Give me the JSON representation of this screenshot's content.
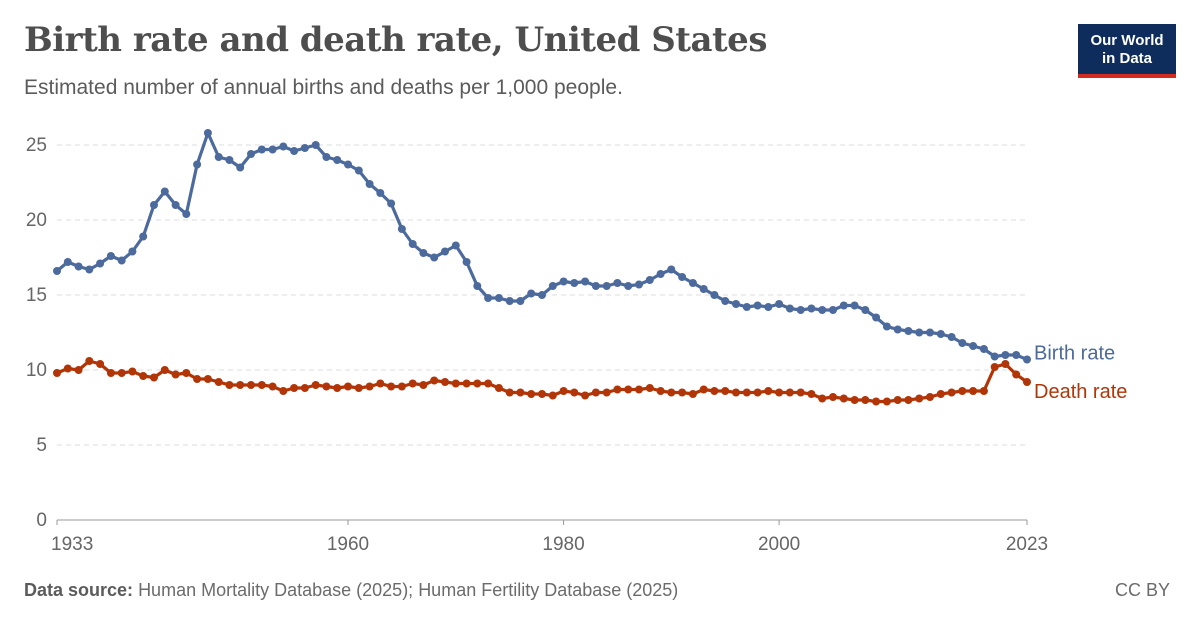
{
  "header": {
    "title": "Birth rate and death rate, United States",
    "subtitle": "Estimated number of annual births and deaths per 1,000 people."
  },
  "logo": {
    "line1": "Our World",
    "line2": "in Data"
  },
  "footer": {
    "source_label": "Data source:",
    "source_text": "Human Mortality Database (2025); Human Fertility Database (2025)",
    "license": "CC BY"
  },
  "colors": {
    "birth": "#4c6a9c",
    "death": "#b13507",
    "grid": "#dddddd",
    "axis": "#999999"
  },
  "chart_data": {
    "type": "line",
    "title": "Birth rate and death rate, United States",
    "xlim": [
      1933,
      2023
    ],
    "ylim": [
      0,
      26
    ],
    "y_ticks": [
      0,
      5,
      10,
      15,
      20,
      25
    ],
    "x_ticks": [
      1933,
      1960,
      1980,
      2000,
      2023
    ],
    "grid": "horizontal dashed",
    "legend": "inline labels at line ends",
    "x": [
      1933,
      1934,
      1935,
      1936,
      1937,
      1938,
      1939,
      1940,
      1941,
      1942,
      1943,
      1944,
      1945,
      1946,
      1947,
      1948,
      1949,
      1950,
      1951,
      1952,
      1953,
      1954,
      1955,
      1956,
      1957,
      1958,
      1959,
      1960,
      1961,
      1962,
      1963,
      1964,
      1965,
      1966,
      1967,
      1968,
      1969,
      1970,
      1971,
      1972,
      1973,
      1974,
      1975,
      1976,
      1977,
      1978,
      1979,
      1980,
      1981,
      1982,
      1983,
      1984,
      1985,
      1986,
      1987,
      1988,
      1989,
      1990,
      1991,
      1992,
      1993,
      1994,
      1995,
      1996,
      1997,
      1998,
      1999,
      2000,
      2001,
      2002,
      2003,
      2004,
      2005,
      2006,
      2007,
      2008,
      2009,
      2010,
      2011,
      2012,
      2013,
      2014,
      2015,
      2016,
      2017,
      2018,
      2019,
      2020,
      2021,
      2022,
      2023
    ],
    "series": [
      {
        "name": "Birth rate",
        "values": [
          16.6,
          17.2,
          16.9,
          16.7,
          17.1,
          17.6,
          17.3,
          17.9,
          18.9,
          21.0,
          21.9,
          21.0,
          20.4,
          23.7,
          25.8,
          24.2,
          24.0,
          23.5,
          24.4,
          24.7,
          24.7,
          24.9,
          24.6,
          24.8,
          25.0,
          24.2,
          24.0,
          23.7,
          23.3,
          22.4,
          21.8,
          21.1,
          19.4,
          18.4,
          17.8,
          17.5,
          17.9,
          18.3,
          17.2,
          15.6,
          14.8,
          14.8,
          14.6,
          14.6,
          15.1,
          15.0,
          15.6,
          15.9,
          15.8,
          15.9,
          15.6,
          15.6,
          15.8,
          15.6,
          15.7,
          16.0,
          16.4,
          16.7,
          16.2,
          15.8,
          15.4,
          15.0,
          14.6,
          14.4,
          14.2,
          14.3,
          14.2,
          14.4,
          14.1,
          14.0,
          14.1,
          14.0,
          14.0,
          14.3,
          14.3,
          14.0,
          13.5,
          12.9,
          12.7,
          12.6,
          12.5,
          12.5,
          12.4,
          12.2,
          11.8,
          11.6,
          11.4,
          10.9,
          11.0,
          11.0,
          10.7
        ]
      },
      {
        "name": "Death rate",
        "values": [
          9.8,
          10.1,
          10.0,
          10.6,
          10.4,
          9.8,
          9.8,
          9.9,
          9.6,
          9.5,
          10.0,
          9.7,
          9.8,
          9.4,
          9.4,
          9.2,
          9.0,
          9.0,
          9.0,
          9.0,
          8.9,
          8.6,
          8.8,
          8.8,
          9.0,
          8.9,
          8.8,
          8.9,
          8.8,
          8.9,
          9.1,
          8.9,
          8.9,
          9.1,
          9.0,
          9.3,
          9.2,
          9.1,
          9.1,
          9.1,
          9.1,
          8.8,
          8.5,
          8.5,
          8.4,
          8.4,
          8.3,
          8.6,
          8.5,
          8.3,
          8.5,
          8.5,
          8.7,
          8.7,
          8.7,
          8.8,
          8.6,
          8.5,
          8.5,
          8.4,
          8.7,
          8.6,
          8.6,
          8.5,
          8.5,
          8.5,
          8.6,
          8.5,
          8.5,
          8.5,
          8.4,
          8.1,
          8.2,
          8.1,
          8.0,
          8.0,
          7.9,
          7.9,
          8.0,
          8.0,
          8.1,
          8.2,
          8.4,
          8.5,
          8.6,
          8.6,
          8.6,
          10.2,
          10.4,
          9.7,
          9.2
        ]
      }
    ]
  }
}
